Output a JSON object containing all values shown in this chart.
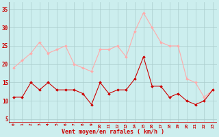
{
  "hours": [
    0,
    1,
    2,
    3,
    4,
    5,
    6,
    7,
    8,
    9,
    10,
    11,
    12,
    13,
    14,
    15,
    16,
    17,
    18,
    19,
    20,
    21,
    22,
    23
  ],
  "wind_avg": [
    11,
    11,
    15,
    13,
    15,
    13,
    13,
    13,
    12,
    9,
    15,
    12,
    13,
    13,
    16,
    22,
    14,
    14,
    11,
    12,
    10,
    9,
    10,
    13
  ],
  "wind_gust": [
    19,
    21,
    23,
    26,
    23,
    24,
    25,
    20,
    19,
    18,
    24,
    24,
    25,
    22,
    29,
    34,
    30,
    26,
    25,
    25,
    16,
    15,
    11,
    13
  ],
  "avg_color": "#cc0000",
  "gust_color": "#ffaaaa",
  "bg_color": "#cceeee",
  "grid_color": "#aacccc",
  "label_color": "#cc0000",
  "xlabel": "Vent moyen/en rafales ( km/h )",
  "yticks": [
    5,
    10,
    15,
    20,
    25,
    30,
    35
  ],
  "ylim": [
    4,
    37
  ],
  "xlim": [
    -0.5,
    23.5
  ],
  "hline_color": "#cc0000"
}
